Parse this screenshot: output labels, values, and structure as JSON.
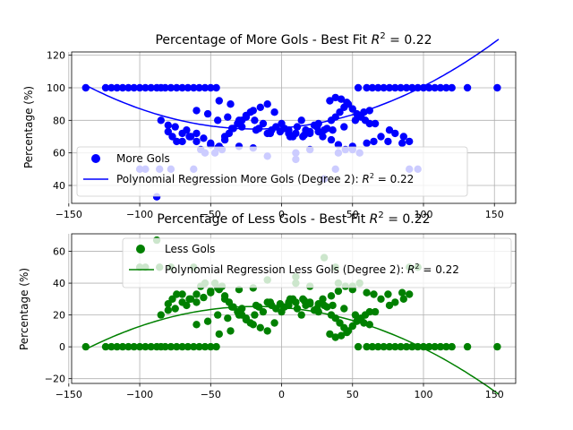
{
  "chart_data": [
    {
      "type": "scatter",
      "title": "Percentage of More Gols - Best Fit R² = 0.22",
      "title_main": "Percentage of More Gols - Best Fit ",
      "title_r2": "R",
      "title_sup": "2",
      "title_tail": " = 0.22",
      "xlabel": "",
      "ylabel": "Percentage (%)",
      "xlim": [
        -148,
        165
      ],
      "ylim": [
        29,
        122
      ],
      "xticks": [
        -150,
        -100,
        -50,
        0,
        50,
        100,
        150
      ],
      "yticks": [
        40,
        60,
        80,
        100,
        120
      ],
      "xtick_labels": [
        "−150",
        "−100",
        "−50",
        "0",
        "50",
        "100",
        "150"
      ],
      "ytick_labels": [
        "40",
        "60",
        "80",
        "100",
        "120"
      ],
      "grid": true,
      "legend_position": "lower left",
      "colors": {
        "points": "#0000ff",
        "line": "#0000ff"
      },
      "series": [
        {
          "name": "More Gols",
          "kind": "points",
          "x": [
            -138,
            -124,
            -120,
            -116,
            -112,
            -108,
            -104,
            -100,
            -96,
            -92,
            -88,
            -85,
            -82,
            -78,
            -74,
            -70,
            -66,
            -62,
            -58,
            -54,
            -50,
            -46,
            -88,
            -85,
            -80,
            -77,
            -74,
            -70,
            -67,
            -64,
            -60,
            -57,
            -54,
            -50,
            -47,
            -44,
            -40,
            -37,
            -34,
            -31,
            -28,
            -25,
            -22,
            -19,
            -16,
            -13,
            -10,
            -7,
            -4,
            -1,
            2,
            5,
            8,
            11,
            14,
            17,
            20,
            23,
            26,
            29,
            32,
            35,
            38,
            41,
            44,
            47,
            50,
            53,
            56,
            59,
            62,
            -80,
            -75,
            -70,
            -65,
            -60,
            -55,
            -50,
            -45,
            -40,
            -35,
            -30,
            -25,
            -20,
            -15,
            -10,
            -5,
            0,
            5,
            10,
            15,
            20,
            25,
            30,
            35,
            40,
            45,
            50,
            55,
            60,
            65,
            70,
            75,
            80,
            85,
            90,
            54,
            60,
            64,
            68,
            72,
            76,
            80,
            84,
            88,
            92,
            96,
            100,
            104,
            108,
            112,
            116,
            120,
            131,
            152,
            -44,
            -36,
            34,
            38,
            42,
            46,
            58,
            62,
            -42,
            -30,
            -20,
            -10,
            10,
            20,
            30,
            40,
            50,
            -60,
            -52,
            -45,
            -38,
            -28,
            -18,
            -8,
            6,
            16,
            26,
            36,
            44,
            52,
            66,
            76,
            86,
            -100,
            -96,
            -86,
            -78,
            -62,
            10,
            38,
            90,
            96
          ],
          "y": [
            100,
            100,
            100,
            100,
            100,
            100,
            100,
            100,
            100,
            100,
            100,
            100,
            100,
            100,
            100,
            100,
            100,
            100,
            100,
            100,
            100,
            100,
            33,
            80,
            73,
            70,
            67,
            72,
            74,
            70,
            67,
            62,
            60,
            66,
            60,
            64,
            70,
            72,
            75,
            78,
            80,
            82,
            85,
            80,
            75,
            78,
            72,
            74,
            76,
            73,
            75,
            72,
            70,
            76,
            80,
            74,
            72,
            77,
            78,
            70,
            75,
            80,
            82,
            85,
            88,
            90,
            87,
            84,
            82,
            80,
            78,
            77,
            76,
            67,
            70,
            72,
            69,
            65,
            63,
            68,
            75,
            80,
            83,
            86,
            88,
            90,
            85,
            78,
            74,
            72,
            70,
            73,
            76,
            74,
            68,
            65,
            62,
            64,
            60,
            66,
            67,
            70,
            67,
            72,
            66,
            67,
            100,
            100,
            100,
            100,
            100,
            100,
            100,
            100,
            100,
            100,
            100,
            100,
            100,
            100,
            100,
            100,
            100,
            100,
            100,
            92,
            90,
            92,
            94,
            93,
            91,
            85,
            86,
            62,
            64,
            63,
            58,
            60,
            62,
            44,
            60,
            62,
            86,
            84,
            80,
            82,
            76,
            74,
            72,
            70,
            71,
            73,
            74,
            76,
            80,
            78,
            74,
            70,
            50,
            50,
            50,
            50,
            50,
            56,
            50,
            50,
            50
          ]
        },
        {
          "name": "Polynomial Regression More Gols (Degree 2): R² = 0.22",
          "legend_main": "Polynomial Regression More Gols (Degree 2): ",
          "legend_r": "R",
          "legend_sup": "2",
          "legend_tail": " = 0.22",
          "kind": "line",
          "coefficients": {
            "a": 0.001877,
            "b": 0.069,
            "c": 75.3
          },
          "x_range": [
            -138,
            153
          ]
        }
      ]
    },
    {
      "type": "scatter",
      "title": "Percentage of Less Gols - Best Fit R² = 0.22",
      "title_main": "Percentage of Less Gols - Best Fit ",
      "title_r2": "R",
      "title_sup": "2",
      "title_tail": " = 0.22",
      "xlabel": "",
      "ylabel": "Percentage (%)",
      "xlim": [
        -148,
        165
      ],
      "ylim": [
        -23,
        71
      ],
      "xticks": [
        -150,
        -100,
        -50,
        0,
        50,
        100,
        150
      ],
      "yticks": [
        -20,
        0,
        20,
        40,
        60
      ],
      "xtick_labels": [
        "−150",
        "−100",
        "−50",
        "0",
        "50",
        "100",
        "150"
      ],
      "ytick_labels": [
        "−20",
        "0",
        "20",
        "40",
        "60"
      ],
      "grid": true,
      "legend_position": "upper center",
      "colors": {
        "points": "#008000",
        "line": "#008000"
      },
      "series": [
        {
          "name": "Less Gols",
          "kind": "points",
          "x": [
            -138,
            -124,
            -120,
            -116,
            -112,
            -108,
            -104,
            -100,
            -96,
            -92,
            -88,
            -85,
            -82,
            -78,
            -74,
            -70,
            -66,
            -62,
            -58,
            -54,
            -50,
            -46,
            -88,
            -85,
            -80,
            -77,
            -74,
            -70,
            -67,
            -64,
            -60,
            -57,
            -54,
            -50,
            -47,
            -44,
            -40,
            -37,
            -34,
            -31,
            -28,
            -25,
            -22,
            -19,
            -16,
            -13,
            -10,
            -7,
            -4,
            -1,
            2,
            5,
            8,
            11,
            14,
            17,
            20,
            23,
            26,
            29,
            32,
            35,
            38,
            41,
            44,
            47,
            50,
            53,
            56,
            59,
            62,
            -80,
            -75,
            -70,
            -65,
            -60,
            -55,
            -50,
            -45,
            -40,
            -35,
            -30,
            -25,
            -20,
            -15,
            -10,
            -5,
            0,
            5,
            10,
            15,
            20,
            25,
            30,
            35,
            40,
            45,
            50,
            55,
            60,
            65,
            70,
            75,
            80,
            85,
            90,
            54,
            60,
            64,
            68,
            72,
            76,
            80,
            84,
            88,
            92,
            96,
            100,
            104,
            108,
            112,
            116,
            120,
            131,
            152,
            -44,
            -36,
            34,
            38,
            42,
            46,
            58,
            62,
            -42,
            -30,
            -20,
            -10,
            10,
            20,
            30,
            40,
            50,
            -60,
            -52,
            -45,
            -38,
            -28,
            -18,
            -8,
            6,
            16,
            26,
            36,
            44,
            52,
            66,
            76,
            86,
            -100,
            -96,
            -86,
            -78,
            -62,
            10,
            38,
            90,
            96
          ],
          "y": [
            0,
            0,
            0,
            0,
            0,
            0,
            0,
            0,
            0,
            0,
            0,
            0,
            0,
            0,
            0,
            0,
            0,
            0,
            0,
            0,
            0,
            0,
            67,
            20,
            27,
            30,
            33,
            28,
            26,
            30,
            33,
            38,
            40,
            34,
            40,
            36,
            30,
            28,
            25,
            22,
            20,
            18,
            15,
            20,
            25,
            22,
            28,
            26,
            24,
            27,
            25,
            28,
            30,
            24,
            20,
            26,
            28,
            23,
            22,
            30,
            25,
            20,
            18,
            15,
            12,
            10,
            13,
            16,
            18,
            20,
            22,
            23,
            24,
            33,
            30,
            28,
            31,
            35,
            37,
            32,
            25,
            20,
            17,
            14,
            12,
            10,
            15,
            22,
            26,
            28,
            30,
            27,
            24,
            26,
            32,
            35,
            38,
            36,
            40,
            34,
            33,
            30,
            33,
            28,
            34,
            33,
            0,
            0,
            0,
            0,
            0,
            0,
            0,
            0,
            0,
            0,
            0,
            0,
            0,
            0,
            0,
            0,
            0,
            0,
            0,
            8,
            10,
            8,
            6,
            7,
            9,
            15,
            14,
            38,
            36,
            37,
            42,
            40,
            38,
            56,
            40,
            38,
            14,
            16,
            20,
            18,
            24,
            26,
            28,
            30,
            29,
            27,
            26,
            24,
            20,
            22,
            26,
            30,
            50,
            50,
            50,
            50,
            50,
            44,
            50,
            50,
            50
          ]
        },
        {
          "name": "Polynomial Regression Less Gols (Degree 2): R² = 0.22",
          "legend_main": "Polynomial Regression Less Gols (Degree 2): ",
          "legend_r": "R",
          "legend_sup": "2",
          "legend_tail": " = 0.22",
          "kind": "line",
          "coefficients": {
            "a": -0.001877,
            "b": -0.069,
            "c": 24.7
          },
          "x_range": [
            -138,
            153
          ]
        }
      ]
    }
  ]
}
